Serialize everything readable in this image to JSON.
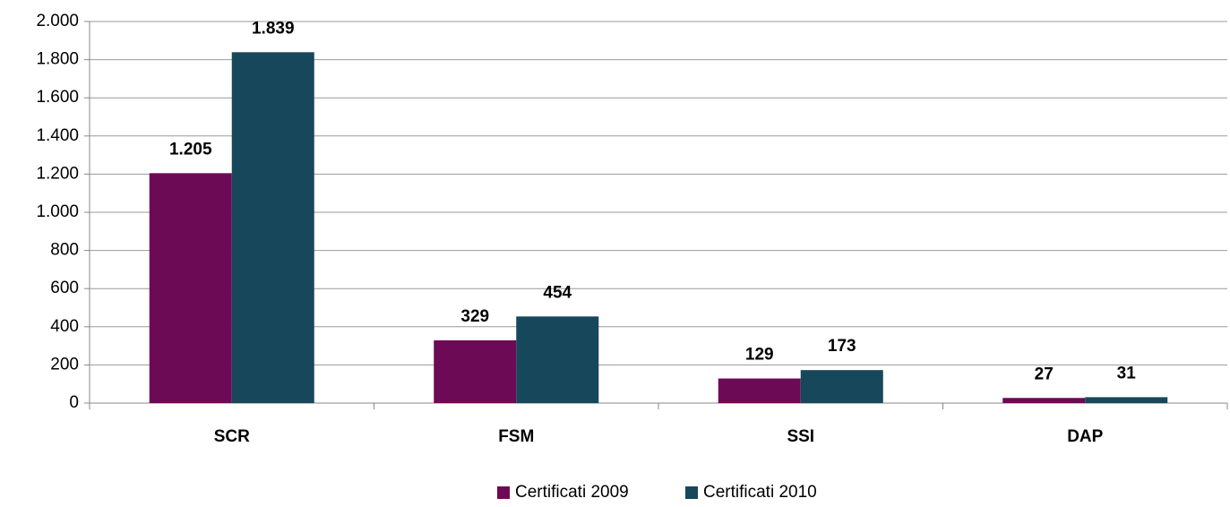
{
  "chart_data": {
    "type": "bar",
    "categories": [
      "SCR",
      "FSM",
      "SSI",
      "DAP"
    ],
    "series": [
      {
        "name": "Certificati 2009",
        "color": "#6d0a56",
        "values": [
          1205,
          329,
          129,
          27
        ],
        "value_labels": [
          "1.205",
          "329",
          "129",
          "27"
        ]
      },
      {
        "name": "Certificati 2010",
        "color": "#17475b",
        "values": [
          1839,
          454,
          173,
          31
        ],
        "value_labels": [
          "1.839",
          "454",
          "173",
          "31"
        ]
      }
    ],
    "ylim": [
      0,
      2000
    ],
    "yticks": [
      0,
      200,
      400,
      600,
      800,
      {
        "value": 1000,
        "label": "1.000"
      },
      {
        "value": 1200,
        "label": "1.200"
      },
      {
        "value": 1400,
        "label": "1.400"
      },
      {
        "value": 1600,
        "label": "1.600"
      },
      {
        "value": 1800,
        "label": "1.800"
      },
      {
        "value": 2000,
        "label": "2.000"
      }
    ],
    "grid": true,
    "legend": "bottom"
  }
}
